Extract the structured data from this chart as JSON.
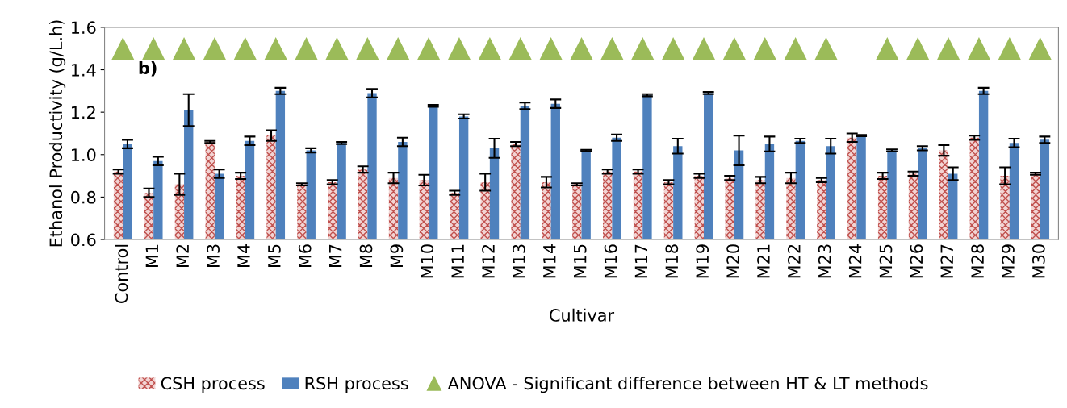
{
  "chart_data": {
    "type": "bar",
    "xlabel": "Cultivar",
    "ylabel": "Ethanol Productivity (g/L.h)",
    "categories": [
      "Control",
      "M1",
      "M2",
      "M3",
      "M4",
      "M5",
      "M6",
      "M7",
      "M8",
      "M9",
      "M10",
      "M11",
      "M12",
      "M13",
      "M14",
      "M15",
      "M16",
      "M17",
      "M18",
      "M19",
      "M20",
      "M21",
      "M22",
      "M23",
      "M24",
      "M25",
      "M26",
      "M27",
      "M28",
      "M29",
      "M30"
    ],
    "series": [
      {
        "name": "CSH process",
        "color": "#c0504d",
        "values": [
          0.92,
          0.82,
          0.86,
          1.06,
          0.9,
          1.09,
          0.86,
          0.87,
          0.93,
          0.89,
          0.88,
          0.82,
          0.87,
          1.05,
          0.87,
          0.86,
          0.92,
          0.92,
          0.87,
          0.9,
          0.89,
          0.88,
          0.89,
          0.88,
          1.08,
          0.9,
          0.91,
          1.02,
          1.08,
          0.9,
          0.91
        ],
        "errors": [
          0.01,
          0.02,
          0.05,
          0.005,
          0.015,
          0.025,
          0.005,
          0.01,
          0.015,
          0.025,
          0.025,
          0.01,
          0.04,
          0.01,
          0.025,
          0.005,
          0.01,
          0.01,
          0.01,
          0.01,
          0.01,
          0.015,
          0.025,
          0.01,
          0.02,
          0.015,
          0.01,
          0.025,
          0.01,
          0.04,
          0.005
        ]
      },
      {
        "name": "RSH process",
        "color": "#4f81bd",
        "values": [
          1.05,
          0.97,
          1.21,
          0.91,
          1.065,
          1.3,
          1.02,
          1.055,
          1.29,
          1.06,
          1.23,
          1.18,
          1.03,
          1.23,
          1.24,
          1.02,
          1.08,
          1.28,
          1.04,
          1.29,
          1.02,
          1.05,
          1.065,
          1.04,
          1.09,
          1.02,
          1.03,
          0.91,
          1.3,
          1.055,
          1.07
        ],
        "errors": [
          0.02,
          0.02,
          0.075,
          0.02,
          0.02,
          0.015,
          0.01,
          0.005,
          0.02,
          0.02,
          0.005,
          0.01,
          0.045,
          0.015,
          0.02,
          0.003,
          0.015,
          0.005,
          0.035,
          0.005,
          0.07,
          0.035,
          0.01,
          0.035,
          0.003,
          0.005,
          0.01,
          0.03,
          0.015,
          0.02,
          0.015
        ]
      },
      {
        "name": "ANOVA - Significant difference between HT & LT methods",
        "type": "scatter",
        "marker": "triangle",
        "color": "#9bbb59",
        "values": [
          1.5,
          1.5,
          1.5,
          1.5,
          1.5,
          1.5,
          1.5,
          1.5,
          1.5,
          1.5,
          1.5,
          1.5,
          1.5,
          1.5,
          1.5,
          1.5,
          1.5,
          1.5,
          1.5,
          1.5,
          1.5,
          1.5,
          1.5,
          1.5,
          null,
          1.5,
          1.5,
          1.5,
          1.5,
          1.5,
          1.5
        ]
      }
    ],
    "ylim": [
      0.6,
      1.6
    ],
    "yticks": [
      {
        "value": 0.6,
        "label": "0.6"
      },
      {
        "value": 0.8,
        "label": "0.8"
      },
      {
        "value": 1.0,
        "label": "1.0"
      },
      {
        "value": 1.2,
        "label": "1.2"
      },
      {
        "value": 1.4,
        "label": "1.4"
      },
      {
        "value": 1.6,
        "label": "1.6"
      }
    ],
    "annotations": [
      "b)"
    ],
    "legend": "bottom",
    "grid": false
  }
}
